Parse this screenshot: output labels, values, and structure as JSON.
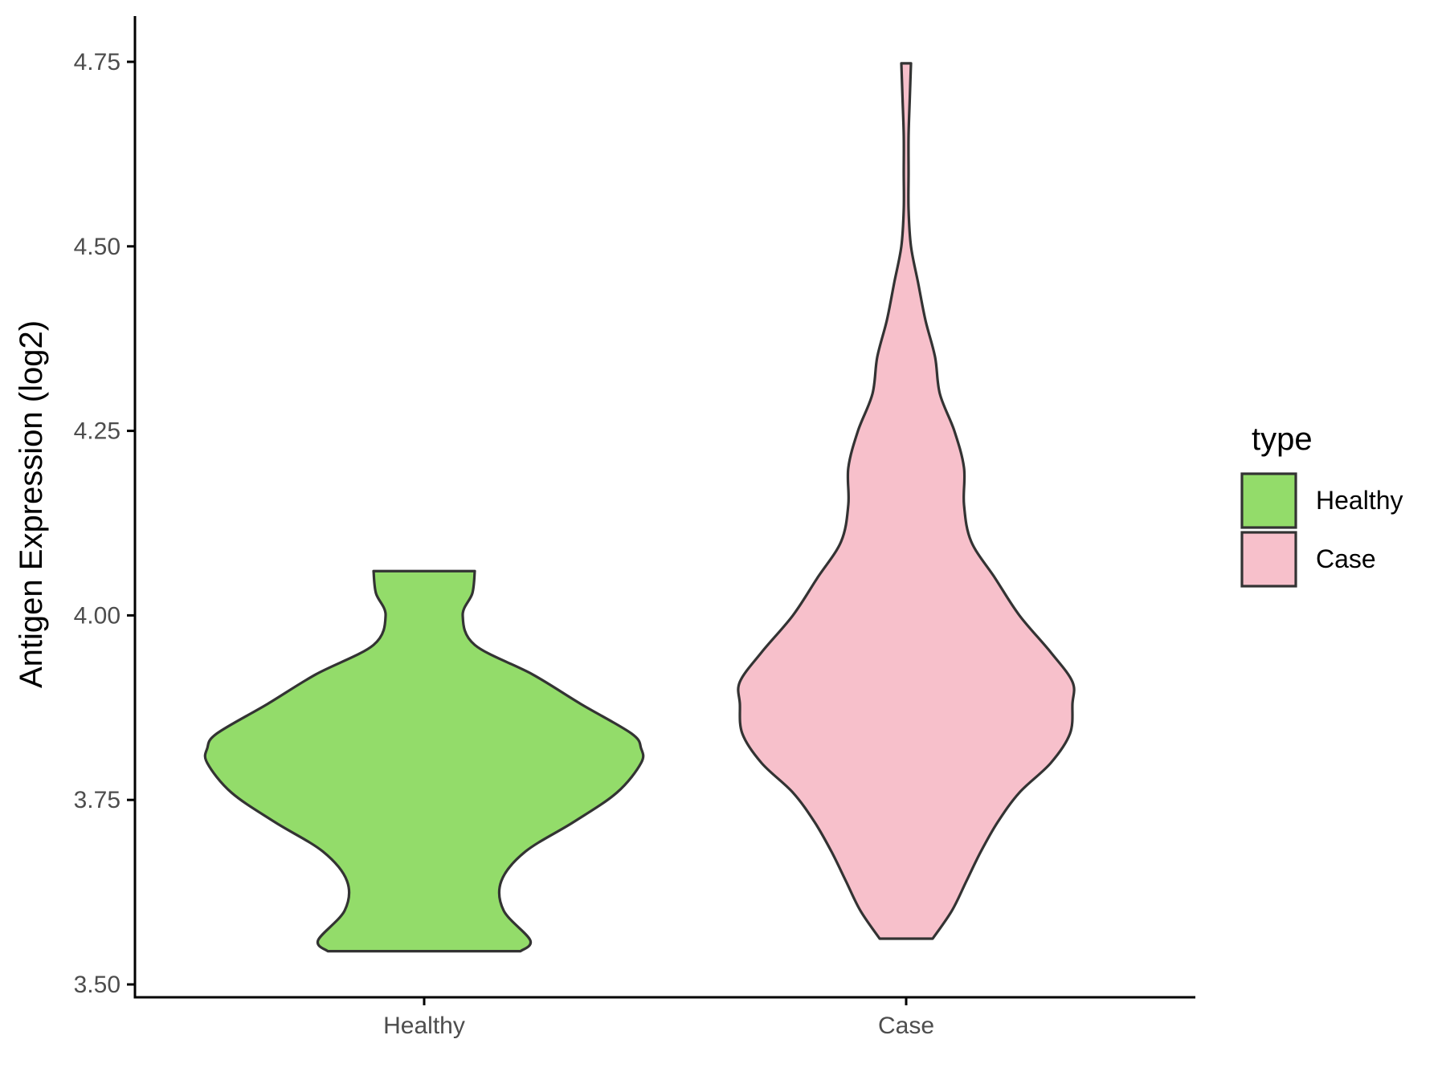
{
  "chart_data": {
    "type": "violin",
    "title": "",
    "xlabel": "",
    "ylabel": "Antigen Expression (log2)",
    "ylim": [
      3.49,
      4.8
    ],
    "yticks": [
      3.5,
      3.75,
      4.0,
      4.25,
      4.5,
      4.75
    ],
    "ytick_labels": [
      "3.50",
      "3.75",
      "4.00",
      "4.25",
      "4.50",
      "4.75"
    ],
    "categories": [
      "Healthy",
      "Case"
    ],
    "grid": false,
    "legend": {
      "title": "type",
      "position": "right",
      "entries": [
        {
          "label": "Healthy",
          "color": "#93DC6A"
        },
        {
          "label": "Case",
          "color": "#F7C0CB"
        }
      ]
    },
    "series": [
      {
        "category": "Healthy",
        "color": "#93DC6A",
        "min": 3.545,
        "max": 4.06,
        "density_profile": [
          [
            3.545,
            0.4
          ],
          [
            3.56,
            0.44
          ],
          [
            3.6,
            0.33
          ],
          [
            3.64,
            0.32
          ],
          [
            3.68,
            0.42
          ],
          [
            3.72,
            0.62
          ],
          [
            3.76,
            0.8
          ],
          [
            3.8,
            0.9
          ],
          [
            3.82,
            0.9
          ],
          [
            3.84,
            0.86
          ],
          [
            3.88,
            0.65
          ],
          [
            3.92,
            0.45
          ],
          [
            3.96,
            0.21
          ],
          [
            4.0,
            0.16
          ],
          [
            4.03,
            0.2
          ],
          [
            4.06,
            0.21
          ]
        ]
      },
      {
        "category": "Case",
        "color": "#F7C0CB",
        "min": 3.562,
        "max": 4.748,
        "density_profile": [
          [
            3.562,
            0.11
          ],
          [
            3.6,
            0.19
          ],
          [
            3.64,
            0.25
          ],
          [
            3.68,
            0.31
          ],
          [
            3.72,
            0.38
          ],
          [
            3.76,
            0.47
          ],
          [
            3.8,
            0.6
          ],
          [
            3.84,
            0.68
          ],
          [
            3.88,
            0.69
          ],
          [
            3.91,
            0.69
          ],
          [
            3.95,
            0.6
          ],
          [
            4.0,
            0.47
          ],
          [
            4.05,
            0.37
          ],
          [
            4.1,
            0.27
          ],
          [
            4.15,
            0.24
          ],
          [
            4.2,
            0.24
          ],
          [
            4.25,
            0.2
          ],
          [
            4.3,
            0.14
          ],
          [
            4.35,
            0.12
          ],
          [
            4.4,
            0.08
          ],
          [
            4.45,
            0.05
          ],
          [
            4.5,
            0.02
          ],
          [
            4.55,
            0.01
          ],
          [
            4.6,
            0.01
          ],
          [
            4.65,
            0.01
          ],
          [
            4.7,
            0.015
          ],
          [
            4.748,
            0.02
          ]
        ]
      }
    ]
  }
}
